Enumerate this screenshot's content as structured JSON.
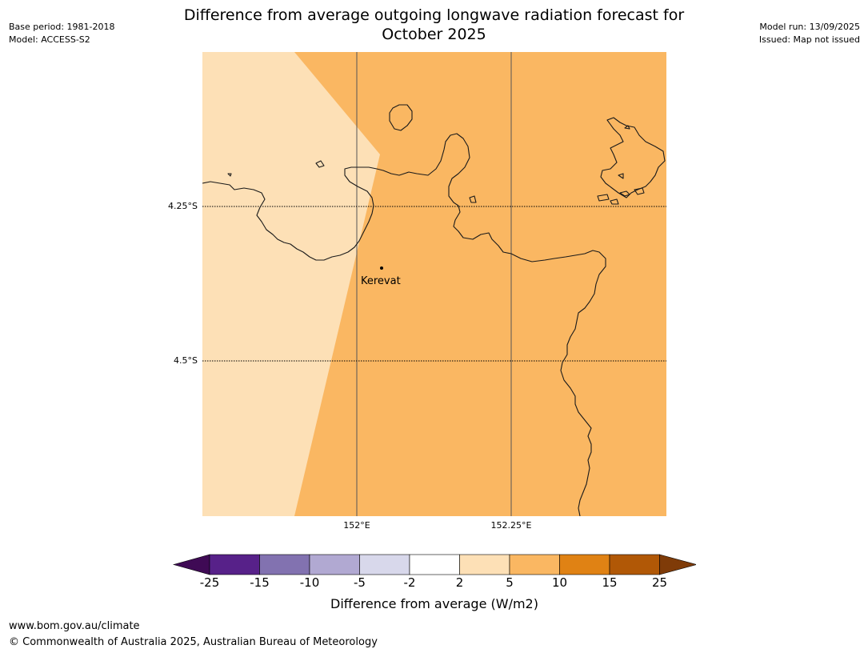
{
  "header": {
    "title_line1": "Difference from average outgoing longwave radiation forecast for",
    "title_line2": "October 2025",
    "base_period": "Base period: 1981-2018",
    "model": "Model: ACCESS-S2",
    "model_run": "Model run: 13/09/2025",
    "issued": "Issued: Map not issued"
  },
  "map": {
    "lat_labels": [
      "4.25°S",
      "4.5°S"
    ],
    "lon_labels": [
      "152°E",
      "152.25°E"
    ],
    "places": [
      {
        "name": "Kerevat"
      }
    ],
    "colors": {
      "band_2_5": "#fde0b6",
      "band_5_10": "#fab762",
      "coastline": "#1a1a1a",
      "gridline": "#555555"
    }
  },
  "colorbar": {
    "label": "Difference from average (W/m2)",
    "ticks": [
      "-25",
      "-15",
      "-10",
      "-5",
      "-2",
      "2",
      "5",
      "10",
      "15",
      "25"
    ],
    "colors": [
      "#3f0a55",
      "#572189",
      "#8272b0",
      "#b1a9d2",
      "#d8d8eb",
      "#ffffff",
      "#fde0b6",
      "#fab762",
      "#e08214",
      "#b15806",
      "#7f3b08"
    ]
  },
  "footer": {
    "url": "www.bom.gov.au/climate",
    "copyright": "© Commonwealth of Australia 2025, Australian Bureau of Meteorology"
  }
}
